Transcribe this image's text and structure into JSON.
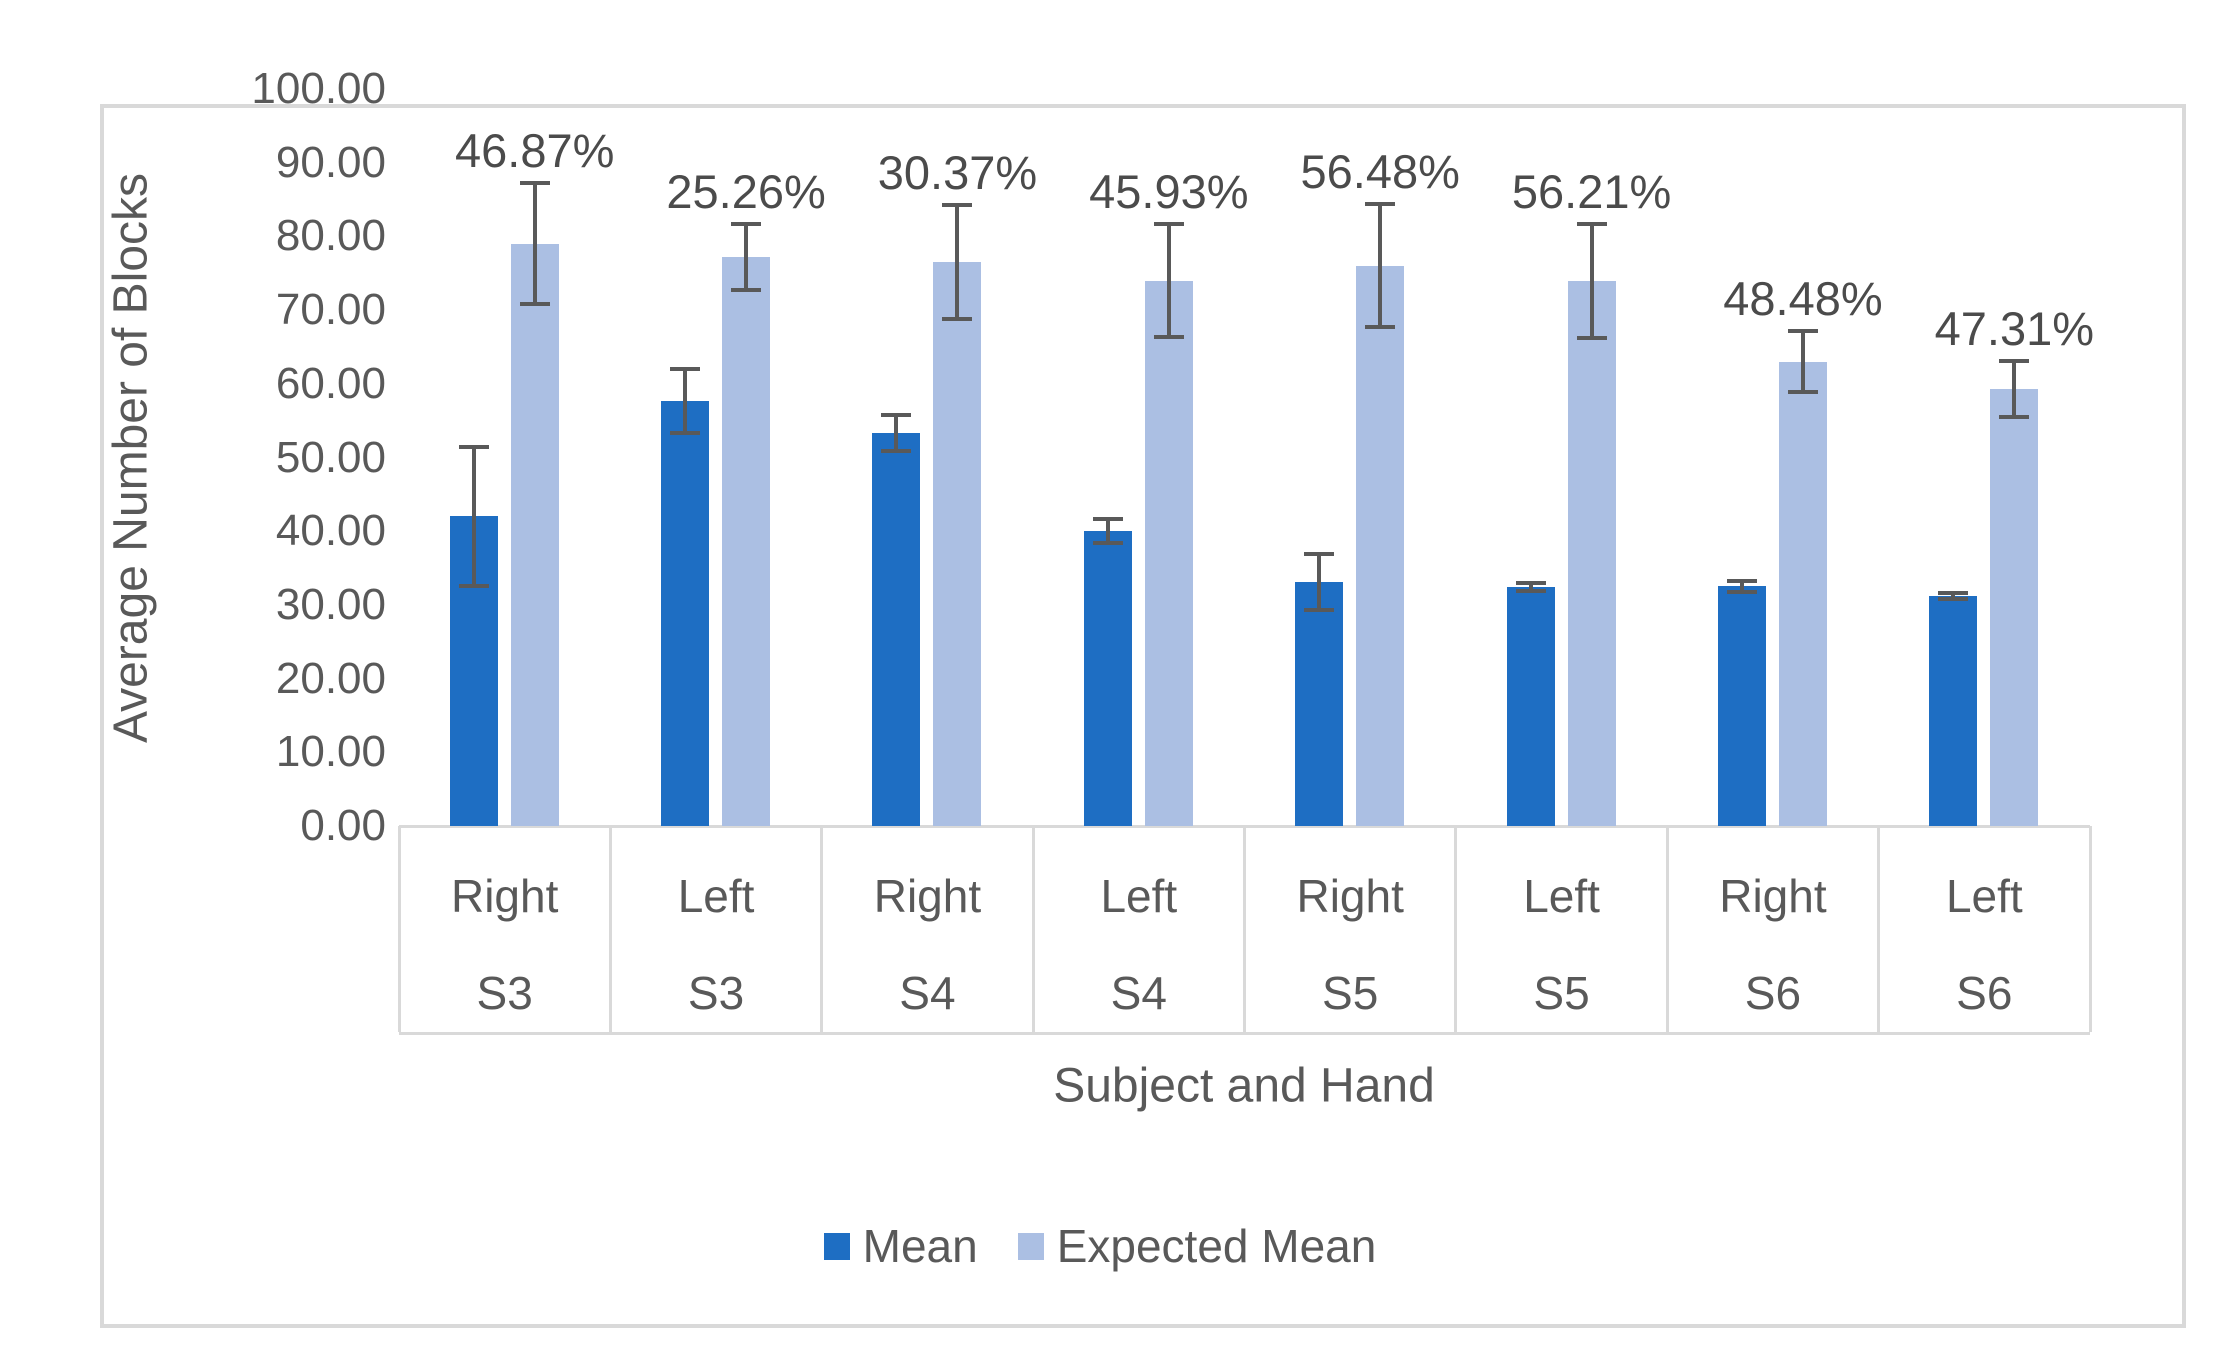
{
  "figure": {
    "background": "#ffffff",
    "border_color": "#d9d9d9"
  },
  "y_axis": {
    "title": "Average Number of Blocks",
    "min": 0,
    "max": 100,
    "step": 10,
    "tick_labels": [
      "0.00",
      "10.00",
      "20.00",
      "30.00",
      "40.00",
      "50.00",
      "60.00",
      "70.00",
      "80.00",
      "90.00",
      "100.00"
    ]
  },
  "x_axis": {
    "title": "Subject and Hand",
    "hand_labels": [
      "Right",
      "Left",
      "Right",
      "Left",
      "Right",
      "Left",
      "Right",
      "Left"
    ],
    "subject_labels": [
      "S3",
      "S3",
      "S4",
      "S4",
      "S5",
      "S5",
      "S6",
      "S6"
    ]
  },
  "legend": {
    "items": [
      {
        "label": "Mean",
        "color": "#1e6ec3"
      },
      {
        "label": "Expected Mean",
        "color": "#abbfe3"
      }
    ]
  },
  "chart_data": {
    "type": "bar",
    "title": "",
    "xlabel": "Subject and Hand",
    "ylabel": "Average Number of Blocks",
    "ylim": [
      0,
      100
    ],
    "grid": false,
    "legend_position": "bottom",
    "categories": [
      {
        "subject": "S3",
        "hand": "Right"
      },
      {
        "subject": "S3",
        "hand": "Left"
      },
      {
        "subject": "S4",
        "hand": "Right"
      },
      {
        "subject": "S4",
        "hand": "Left"
      },
      {
        "subject": "S5",
        "hand": "Right"
      },
      {
        "subject": "S5",
        "hand": "Left"
      },
      {
        "subject": "S6",
        "hand": "Right"
      },
      {
        "subject": "S6",
        "hand": "Left"
      }
    ],
    "series": [
      {
        "name": "Mean",
        "color": "#1e6ec3",
        "values": [
          42.0,
          57.7,
          53.3,
          40.0,
          33.1,
          32.4,
          32.5,
          31.2
        ],
        "error": [
          9.7,
          4.6,
          2.7,
          1.9,
          4.1,
          0.8,
          1.0,
          0.7
        ]
      },
      {
        "name": "Expected Mean",
        "color": "#abbfe3",
        "values": [
          79.0,
          77.2,
          76.5,
          74.0,
          76.0,
          74.0,
          63.0,
          59.3
        ],
        "error": [
          8.5,
          4.8,
          8.0,
          7.9,
          8.6,
          8.0,
          4.4,
          4.1
        ]
      }
    ],
    "data_labels": [
      "46.87%",
      "25.26%",
      "30.37%",
      "45.93%",
      "56.48%",
      "56.21%",
      "48.48%",
      "47.31%"
    ],
    "data_labels_note": "percent difference between Mean and Expected Mean, shown above Expected Mean error bars"
  }
}
